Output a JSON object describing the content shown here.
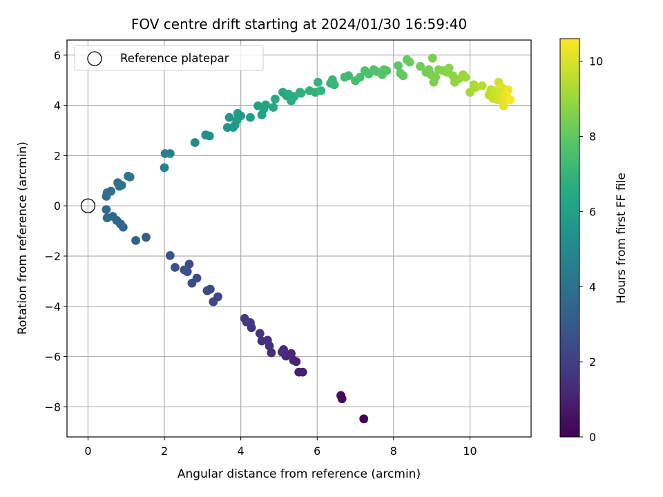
{
  "chart_data": {
    "type": "scatter",
    "title": "FOV centre drift starting at 2024/01/30 16:59:40",
    "xlabel": "Angular distance from reference (arcmin)",
    "ylabel": "Rotation from reference (arcmin)",
    "xlim": [
      -0.55,
      11.6
    ],
    "ylim": [
      -9.2,
      6.6
    ],
    "xticks": [
      0,
      2,
      4,
      6,
      8,
      10
    ],
    "yticks": [
      -8,
      -6,
      -4,
      -2,
      0,
      2,
      4,
      6
    ],
    "grid": true,
    "legend": {
      "position": "top-left",
      "entries": [
        "Reference platepar"
      ]
    },
    "reference_point": {
      "x": 0,
      "y": 0,
      "label": "Reference platepar"
    },
    "colorbar": {
      "label": "Hours from first FF file",
      "colormap": "viridis",
      "range": [
        0,
        10.6
      ],
      "ticks": [
        0,
        2,
        4,
        6,
        8,
        10
      ]
    },
    "series": [
      {
        "x": [
          7.22,
          6.65,
          6.62,
          5.62,
          5.52,
          5.45,
          5.38,
          5.32,
          5.18,
          5.12,
          5.08,
          4.8,
          4.75,
          4.7,
          4.55,
          4.5,
          4.28,
          4.25,
          4.15,
          4.1,
          3.4,
          3.28,
          3.2,
          3.12,
          2.85,
          2.72,
          2.65,
          2.6,
          2.52,
          2.28,
          2.15,
          1.52,
          1.25,
          0.92,
          0.85,
          0.75,
          0.65,
          0.5,
          0.48,
          0.48,
          0.5,
          0.6,
          0.78,
          0.82,
          0.88,
          1.05,
          1.1,
          2.0,
          2.02,
          2.15,
          2.8,
          3.08,
          3.18,
          3.65,
          3.7,
          3.8,
          3.85,
          3.9,
          3.95,
          3.92,
          4.0,
          4.25,
          4.45,
          4.55,
          4.6,
          4.65,
          4.85,
          4.9,
          5.1,
          5.2,
          5.25,
          5.32,
          5.4,
          5.55,
          5.58,
          5.8,
          5.95,
          6.02,
          6.1,
          6.35,
          6.4,
          6.45,
          6.72,
          6.82,
          7.0,
          7.12,
          7.25,
          7.35,
          7.48,
          7.55,
          7.7,
          7.75,
          7.82,
          8.12,
          8.18,
          8.25,
          8.35,
          8.42,
          8.7,
          8.85,
          8.92,
          8.98,
          9.02,
          9.05,
          9.1,
          9.18,
          9.3,
          9.4,
          9.45,
          9.55,
          9.6,
          9.7,
          9.82,
          9.88,
          10.0,
          10.1,
          10.15,
          10.32,
          10.5,
          10.55,
          10.6,
          10.65,
          10.7,
          10.72,
          10.75,
          10.78,
          10.8,
          10.82,
          10.85,
          10.88,
          10.9,
          10.95,
          11.0,
          11.05
        ],
        "y": [
          -8.48,
          -7.68,
          -7.55,
          -6.62,
          -6.62,
          -6.2,
          -6.15,
          -5.88,
          -5.98,
          -5.72,
          -5.82,
          -5.85,
          -5.58,
          -5.35,
          -5.38,
          -5.08,
          -4.85,
          -4.65,
          -4.62,
          -4.48,
          -3.62,
          -3.82,
          -3.32,
          -3.38,
          -2.88,
          -3.08,
          -2.32,
          -2.62,
          -2.55,
          -2.45,
          -1.98,
          -1.25,
          -1.38,
          -0.85,
          -0.72,
          -0.58,
          -0.42,
          -0.48,
          -0.15,
          0.38,
          0.52,
          0.58,
          0.92,
          0.78,
          0.82,
          1.18,
          1.15,
          1.52,
          2.08,
          2.08,
          2.52,
          2.82,
          2.78,
          3.12,
          3.52,
          3.12,
          3.22,
          3.42,
          3.55,
          3.68,
          3.58,
          3.52,
          3.98,
          3.62,
          3.85,
          4.02,
          3.92,
          4.25,
          4.52,
          4.38,
          4.45,
          4.18,
          4.35,
          4.52,
          4.48,
          4.58,
          4.52,
          4.92,
          4.58,
          4.88,
          5.02,
          4.82,
          5.12,
          5.18,
          4.98,
          5.12,
          5.38,
          5.25,
          5.42,
          5.35,
          5.22,
          5.42,
          5.38,
          5.58,
          5.28,
          5.18,
          5.82,
          5.72,
          5.55,
          5.32,
          5.42,
          5.22,
          5.88,
          4.92,
          5.12,
          5.42,
          5.38,
          5.32,
          5.48,
          5.18,
          4.92,
          5.05,
          5.22,
          5.12,
          4.52,
          4.82,
          4.72,
          4.78,
          4.42,
          4.62,
          4.28,
          4.58,
          4.52,
          4.22,
          4.92,
          4.38,
          4.58,
          4.72,
          4.18,
          3.98,
          4.35,
          4.45,
          4.62,
          4.22
        ],
        "hours": [
          0.0,
          0.25,
          0.3,
          0.9,
          0.95,
          1.05,
          1.1,
          1.15,
          1.2,
          1.25,
          1.3,
          1.4,
          1.45,
          1.5,
          1.55,
          1.6,
          1.7,
          1.75,
          1.8,
          1.85,
          2.2,
          2.25,
          2.3,
          2.35,
          2.45,
          2.5,
          2.55,
          2.6,
          2.65,
          2.7,
          2.8,
          3.1,
          3.2,
          3.4,
          3.45,
          3.5,
          3.55,
          3.62,
          3.68,
          3.75,
          3.8,
          3.85,
          3.9,
          3.95,
          4.0,
          4.1,
          4.15,
          4.6,
          4.65,
          4.7,
          5.1,
          5.3,
          5.35,
          5.55,
          5.6,
          5.62,
          5.65,
          5.7,
          5.75,
          5.8,
          5.85,
          5.95,
          6.05,
          6.1,
          6.12,
          6.15,
          6.25,
          6.3,
          6.4,
          6.45,
          6.5,
          6.55,
          6.6,
          6.7,
          6.72,
          6.8,
          6.85,
          6.9,
          6.95,
          7.05,
          7.1,
          7.12,
          7.25,
          7.3,
          7.4,
          7.45,
          7.5,
          7.55,
          7.6,
          7.65,
          7.7,
          7.72,
          7.75,
          7.9,
          7.95,
          8.0,
          8.05,
          8.1,
          8.25,
          8.3,
          8.35,
          8.4,
          8.42,
          8.45,
          8.5,
          8.55,
          8.6,
          8.65,
          8.7,
          8.75,
          8.8,
          8.85,
          8.95,
          9.0,
          9.1,
          9.2,
          9.25,
          9.4,
          9.55,
          9.6,
          9.7,
          9.75,
          9.8,
          9.85,
          9.9,
          9.95,
          10.0,
          10.05,
          10.1,
          10.2,
          10.25,
          10.3,
          10.4,
          10.5
        ]
      }
    ]
  }
}
